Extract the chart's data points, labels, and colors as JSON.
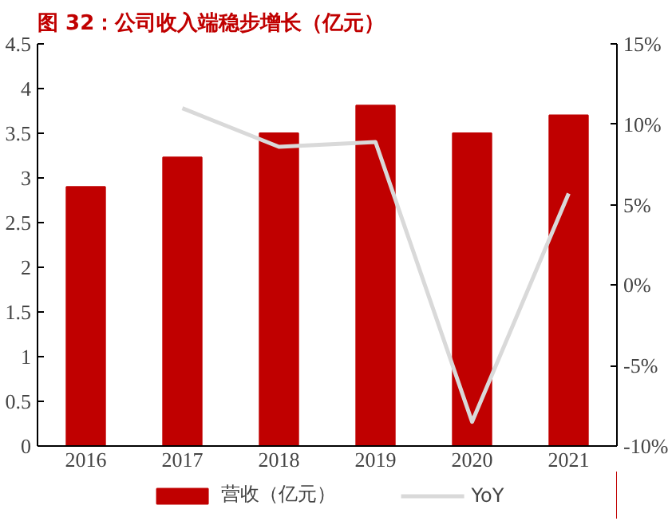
{
  "chart_data": {
    "type": "bar",
    "title": "图 32：公司收入端稳步增长（亿元）",
    "categories": [
      "2016",
      "2017",
      "2018",
      "2019",
      "2020",
      "2021"
    ],
    "series": [
      {
        "name": "营收（亿元）",
        "type": "bar",
        "color": "#c00000",
        "values": [
          2.9,
          3.23,
          3.5,
          3.81,
          3.5,
          3.7
        ]
      },
      {
        "name": "YoY",
        "type": "line",
        "axis": "y2",
        "color": "#d9d9d9",
        "values": [
          null,
          11.0,
          8.6,
          8.9,
          -8.5,
          5.7
        ]
      }
    ],
    "ylim": [
      0,
      4.5
    ],
    "yticks": [
      0,
      0.5,
      1,
      1.5,
      2,
      2.5,
      3,
      3.5,
      4,
      4.5
    ],
    "y2lim": [
      -10,
      15
    ],
    "y2ticks": [
      {
        "value": -10,
        "label": "-10%"
      },
      {
        "value": -5,
        "label": "-5%"
      },
      {
        "value": 0,
        "label": "0%"
      },
      {
        "value": 5,
        "label": "5%"
      },
      {
        "value": 10,
        "label": "10%"
      },
      {
        "value": 15,
        "label": "15%"
      }
    ],
    "grid": false,
    "legend": "bottom"
  }
}
